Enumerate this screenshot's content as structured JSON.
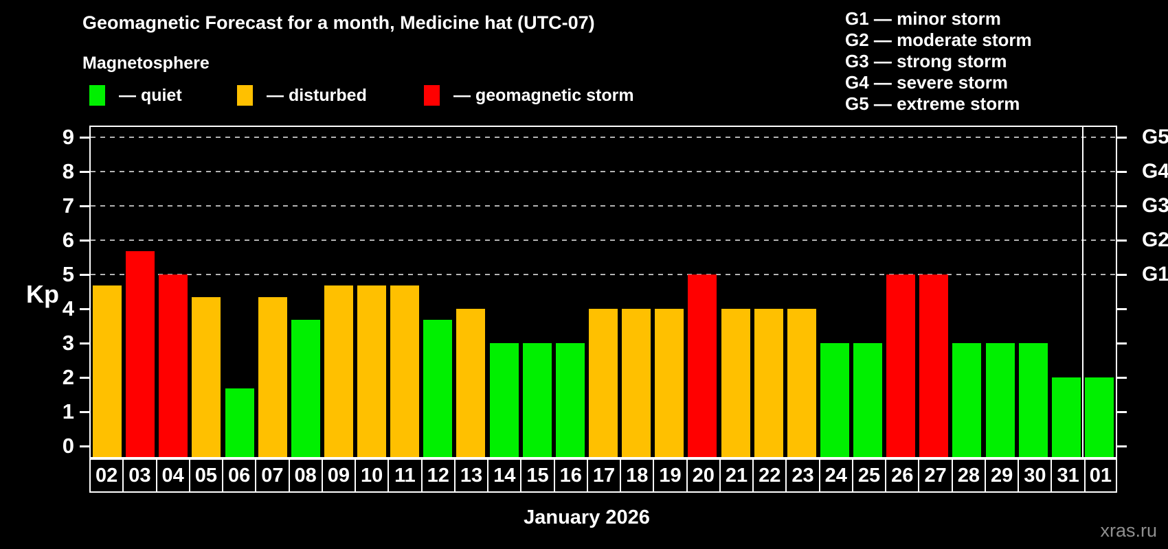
{
  "header": {
    "title": "Geomagnetic Forecast for a month, Medicine hat (UTC-07)",
    "subtitle": "Magnetosphere"
  },
  "magnetosphere_legend": {
    "items": [
      {
        "key": "quiet",
        "label": "— quiet",
        "color": "#00f000"
      },
      {
        "key": "disturbed",
        "label": "— disturbed",
        "color": "#ffc000"
      },
      {
        "key": "storm",
        "label": "— geomagnetic storm",
        "color": "#ff0000"
      }
    ]
  },
  "storm_scale_legend": {
    "items": [
      "G1 — minor storm",
      "G2 — moderate storm",
      "G3 — strong storm",
      "G4 — severe storm",
      "G5 — extreme storm"
    ]
  },
  "chart_data": {
    "type": "bar",
    "title": "Geomagnetic Forecast for a month, Medicine hat (UTC-07)",
    "subtitle": "Magnetosphere",
    "ylabel": "Kp",
    "xlabel": "January 2026",
    "ylim": [
      0,
      9
    ],
    "yticks": [
      0,
      1,
      2,
      3,
      4,
      5,
      6,
      7,
      8,
      9
    ],
    "grid": "horizontal dashed lines at Kp 5-9 (storm levels G1-G5)",
    "gridlines_at_kp": [
      5,
      6,
      7,
      8,
      9
    ],
    "right_axis_labels": [
      {
        "label": "G1",
        "kp": 5
      },
      {
        "label": "G2",
        "kp": 6
      },
      {
        "label": "G3",
        "kp": 7
      },
      {
        "label": "G4",
        "kp": 8
      },
      {
        "label": "G5",
        "kp": 9
      }
    ],
    "categories": [
      "02",
      "03",
      "04",
      "05",
      "06",
      "07",
      "08",
      "09",
      "10",
      "11",
      "12",
      "13",
      "14",
      "15",
      "16",
      "17",
      "18",
      "19",
      "20",
      "21",
      "22",
      "23",
      "24",
      "25",
      "26",
      "27",
      "28",
      "29",
      "30",
      "31",
      "01"
    ],
    "values": [
      4.67,
      5.67,
      5.0,
      4.33,
      1.67,
      4.33,
      3.67,
      4.67,
      4.67,
      4.67,
      3.67,
      4.0,
      3.0,
      3.0,
      3.0,
      4.0,
      4.0,
      4.0,
      5.0,
      4.0,
      4.0,
      4.0,
      3.0,
      3.0,
      5.0,
      5.0,
      3.0,
      3.0,
      3.0,
      2.0,
      2.0
    ],
    "status": [
      "disturbed",
      "storm",
      "storm",
      "disturbed",
      "quiet",
      "disturbed",
      "quiet",
      "disturbed",
      "disturbed",
      "disturbed",
      "quiet",
      "disturbed",
      "quiet",
      "quiet",
      "quiet",
      "disturbed",
      "disturbed",
      "disturbed",
      "storm",
      "disturbed",
      "disturbed",
      "disturbed",
      "quiet",
      "quiet",
      "storm",
      "storm",
      "quiet",
      "quiet",
      "quiet",
      "quiet",
      "quiet"
    ],
    "palette": {
      "quiet": "#00f000",
      "disturbed": "#ffc000",
      "storm": "#ff0000"
    },
    "month_separator_after_category": "31",
    "legend_position": "top-left"
  },
  "watermark": "xras.ru"
}
